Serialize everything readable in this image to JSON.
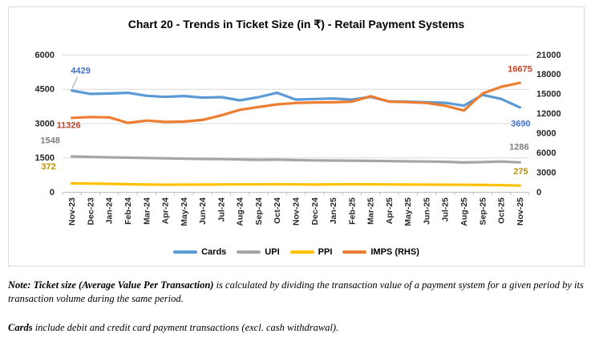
{
  "title": "Chart 20 - Trends in Ticket Size (in ₹) - Retail Payment Systems",
  "chart_data": {
    "type": "line",
    "title": "Chart 20 - Trends in Ticket Size (in ₹) - Retail Payment Systems",
    "grid": true,
    "legend_position": "bottom",
    "categories": [
      "Nov-23",
      "Dec-23",
      "Jan-24",
      "Feb-24",
      "Mar-24",
      "Apr-24",
      "May-24",
      "Jun-24",
      "Jul-24",
      "Aug-24",
      "Sep-24",
      "Oct-24",
      "Nov-24",
      "Dec-24",
      "Jan-25",
      "Feb-25",
      "Mar-25",
      "Apr-25",
      "May-25",
      "Jun-25",
      "Jul-25",
      "Aug-25",
      "Sep-25",
      "Oct-25",
      "Nov-25"
    ],
    "left_axis": {
      "ticks": [
        0,
        1500,
        3000,
        4500,
        6000
      ],
      "range": [
        0,
        6000
      ]
    },
    "right_axis": {
      "ticks": [
        0,
        3000,
        6000,
        9000,
        12000,
        15000,
        18000,
        21000
      ],
      "range": [
        0,
        21000
      ]
    },
    "series": [
      {
        "name": "Cards",
        "axis": "left",
        "color": "#5B9BD5",
        "label_color": "#4472C4",
        "values": [
          4429,
          4280,
          4300,
          4330,
          4200,
          4150,
          4190,
          4120,
          4140,
          4000,
          4140,
          4330,
          4030,
          4060,
          4080,
          4030,
          4150,
          3950,
          3940,
          3920,
          3890,
          3770,
          4240,
          4060,
          3690
        ]
      },
      {
        "name": "UPI",
        "axis": "left",
        "color": "#A5A5A5",
        "label_color": "#7F7F7F",
        "values": [
          1548,
          1525,
          1510,
          1495,
          1480,
          1465,
          1450,
          1440,
          1430,
          1415,
          1400,
          1410,
          1390,
          1375,
          1370,
          1360,
          1355,
          1345,
          1335,
          1325,
          1315,
          1285,
          1300,
          1325,
          1286
        ]
      },
      {
        "name": "PPI",
        "axis": "left",
        "color": "#FFC000",
        "label_color": "#BF8F00",
        "values": [
          372,
          360,
          350,
          335,
          320,
          312,
          315,
          318,
          322,
          325,
          328,
          332,
          326,
          320,
          326,
          334,
          330,
          324,
          318,
          315,
          312,
          308,
          300,
          290,
          275
        ]
      },
      {
        "name": "IMPS (RHS)",
        "axis": "right",
        "color": "#ED7D31",
        "label_color": "#C0442A",
        "values": [
          11326,
          11450,
          11400,
          10550,
          10900,
          10700,
          10750,
          11000,
          11700,
          12550,
          12980,
          13390,
          13600,
          13680,
          13700,
          13800,
          14630,
          13800,
          13730,
          13600,
          13180,
          12440,
          15040,
          16080,
          16675
        ]
      }
    ],
    "data_labels": {
      "Cards": {
        "first": 4429,
        "last": 3690
      },
      "UPI": {
        "first": 1548,
        "last": 1286
      },
      "PPI": {
        "first": 372,
        "last": 275
      },
      "IMPS (RHS)": {
        "first": 11326,
        "last": 16675
      }
    }
  },
  "notes": {
    "p1_bold": "Note: Ticket size (Average Value Per Transaction)",
    "p1_rest": " is calculated by dividing the transaction value of a payment system for a given period by its transaction volume during the same period.",
    "p2_bold": "Cards",
    "p2_rest": " include debit and credit card payment transactions (excl. cash withdrawal)."
  }
}
